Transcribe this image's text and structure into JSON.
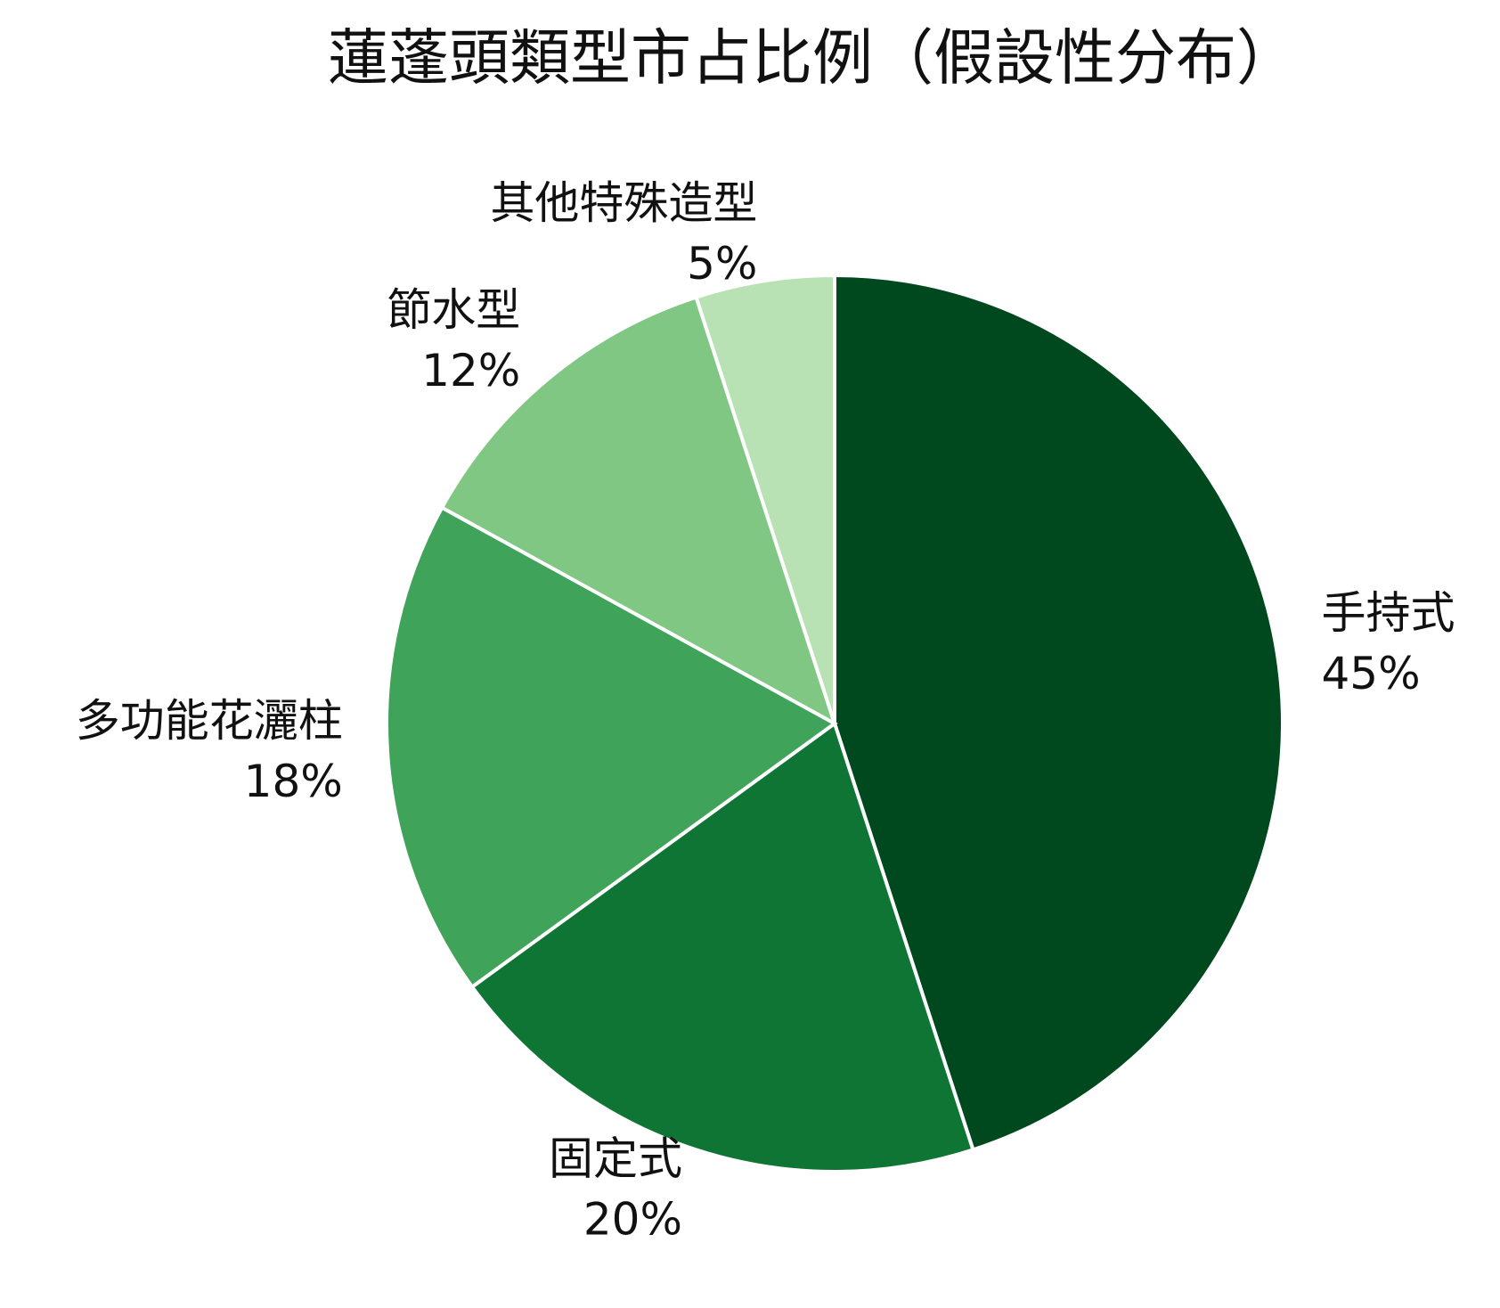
{
  "chart_data": {
    "type": "pie",
    "title": "蓮蓬頭類型市占比例（假設性分布）",
    "categories": [
      "手持式",
      "固定式",
      "多功能花灑柱",
      "節水型",
      "其他特殊造型"
    ],
    "values": [
      45,
      20,
      18,
      12,
      5
    ],
    "value_labels": [
      "45%",
      "20%",
      "18%",
      "12%",
      "5%"
    ],
    "colors": [
      "#00491f",
      "#0f7535",
      "#3fa35a",
      "#81c784",
      "#b8e2b4"
    ]
  }
}
